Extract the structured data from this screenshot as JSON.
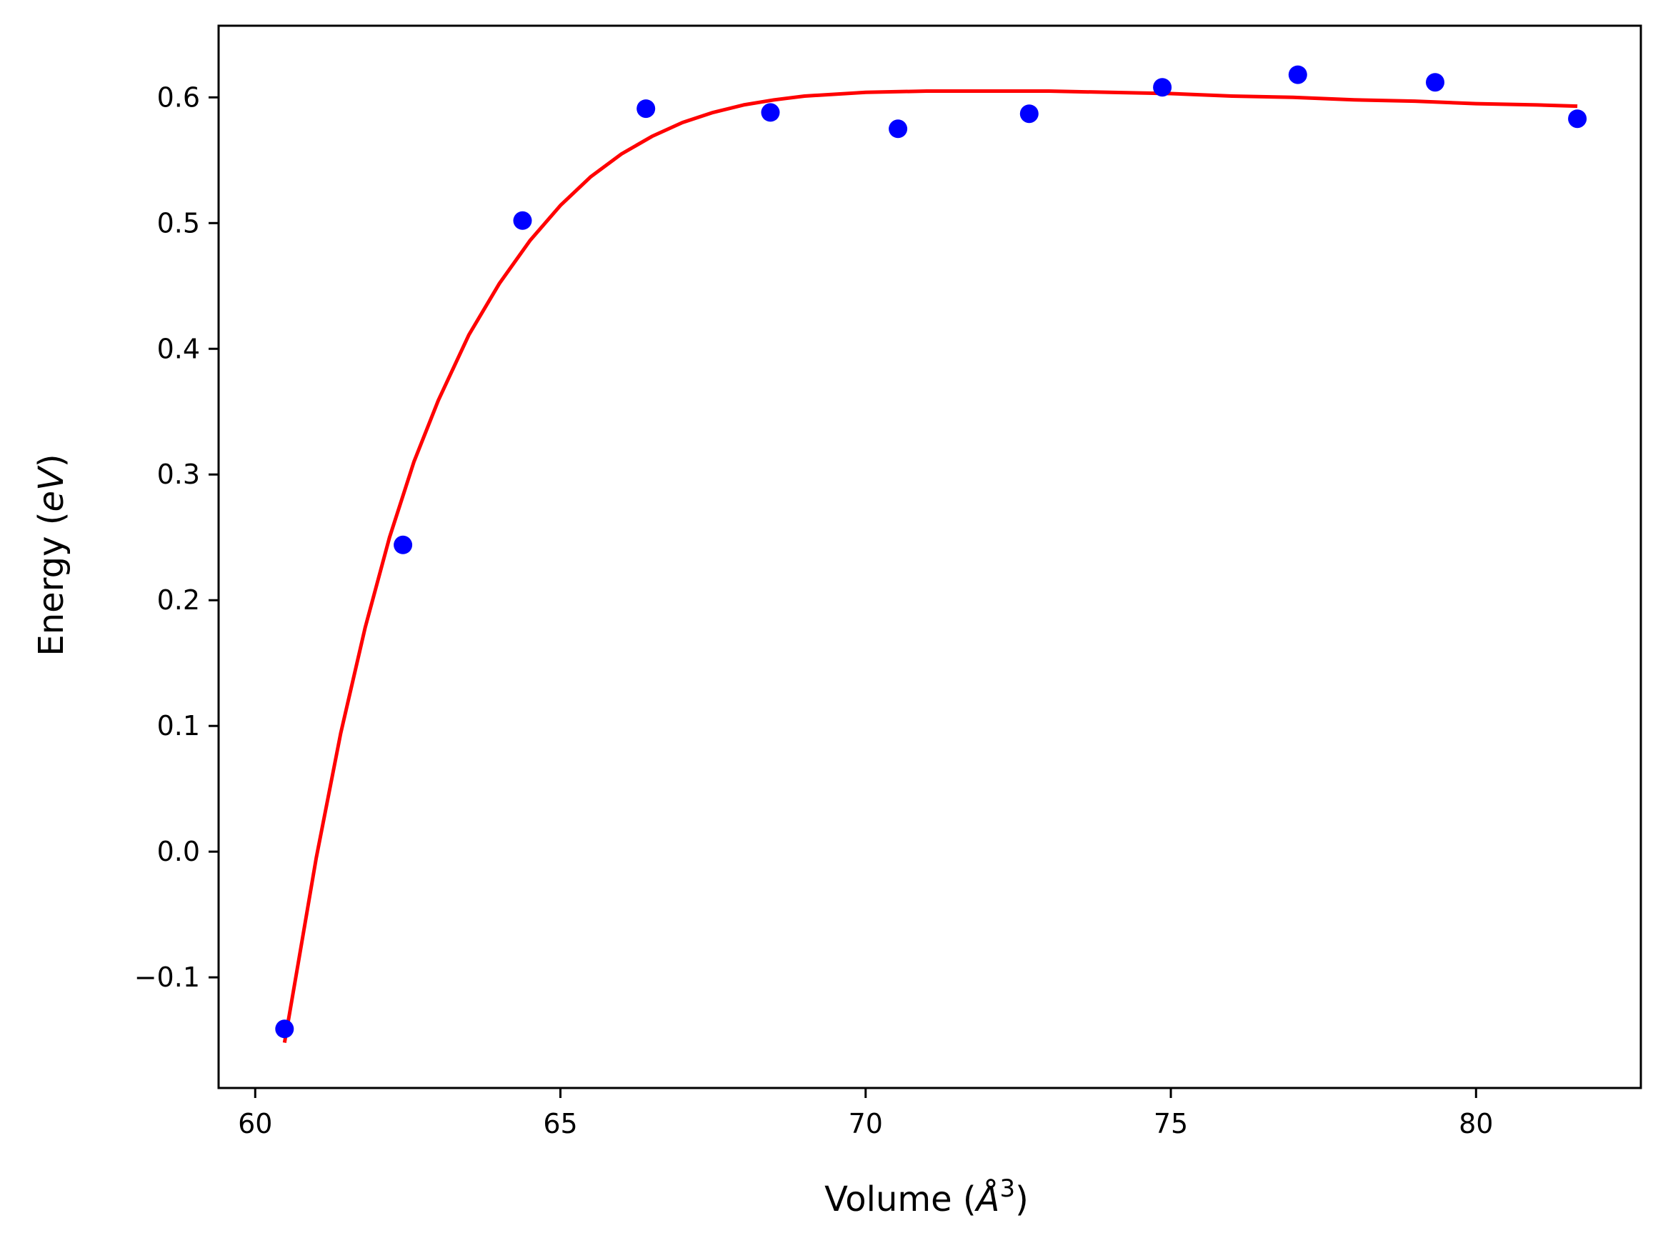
{
  "chart_data": {
    "type": "scatter",
    "xlabel": "Volume (Å³)",
    "xlabel_text": "Volume (",
    "xlabel_unit": "Å",
    "xlabel_exp": "3",
    "xlabel_close": ")",
    "ylabel": "Energy (eV)",
    "ylabel_text": "Energy (",
    "ylabel_unit": "eV",
    "ylabel_close": ")",
    "xlim": [
      59.4,
      82.7
    ],
    "ylim": [
      -0.188,
      0.657
    ],
    "x_ticks": [
      60,
      65,
      70,
      75,
      80
    ],
    "x_tick_labels": [
      "60",
      "65",
      "70",
      "75",
      "80"
    ],
    "y_ticks": [
      -0.1,
      0.0,
      0.1,
      0.2,
      0.3,
      0.4,
      0.5,
      0.6
    ],
    "y_tick_labels": [
      "−0.1",
      "0.0",
      "0.1",
      "0.2",
      "0.3",
      "0.4",
      "0.5",
      "0.6"
    ],
    "grid": false,
    "series": [
      {
        "kind": "points",
        "color": "#0000ff",
        "x": [
          60.48,
          62.42,
          64.38,
          66.4,
          68.44,
          70.53,
          72.68,
          74.86,
          77.08,
          79.33,
          81.66
        ],
        "y": [
          -0.141,
          0.244,
          0.502,
          0.591,
          0.588,
          0.575,
          0.587,
          0.608,
          0.618,
          0.612,
          0.583
        ]
      },
      {
        "kind": "fit-curve",
        "color": "#ff0000",
        "x": [
          60.48,
          60.7,
          61.0,
          61.4,
          61.8,
          62.2,
          62.6,
          63.0,
          63.5,
          64.0,
          64.5,
          65.0,
          65.5,
          66.0,
          66.5,
          67.0,
          67.5,
          68.0,
          68.5,
          69.0,
          70.0,
          71.0,
          72.0,
          73.0,
          74.0,
          75.0,
          76.0,
          77.0,
          78.0,
          79.0,
          80.0,
          81.0,
          81.66
        ],
        "y": [
          -0.152,
          -0.09,
          -0.005,
          0.094,
          0.178,
          0.25,
          0.31,
          0.359,
          0.411,
          0.452,
          0.486,
          0.514,
          0.537,
          0.555,
          0.569,
          0.58,
          0.588,
          0.594,
          0.598,
          0.601,
          0.604,
          0.605,
          0.605,
          0.605,
          0.604,
          0.603,
          0.601,
          0.6,
          0.598,
          0.597,
          0.595,
          0.594,
          0.593
        ]
      }
    ]
  }
}
